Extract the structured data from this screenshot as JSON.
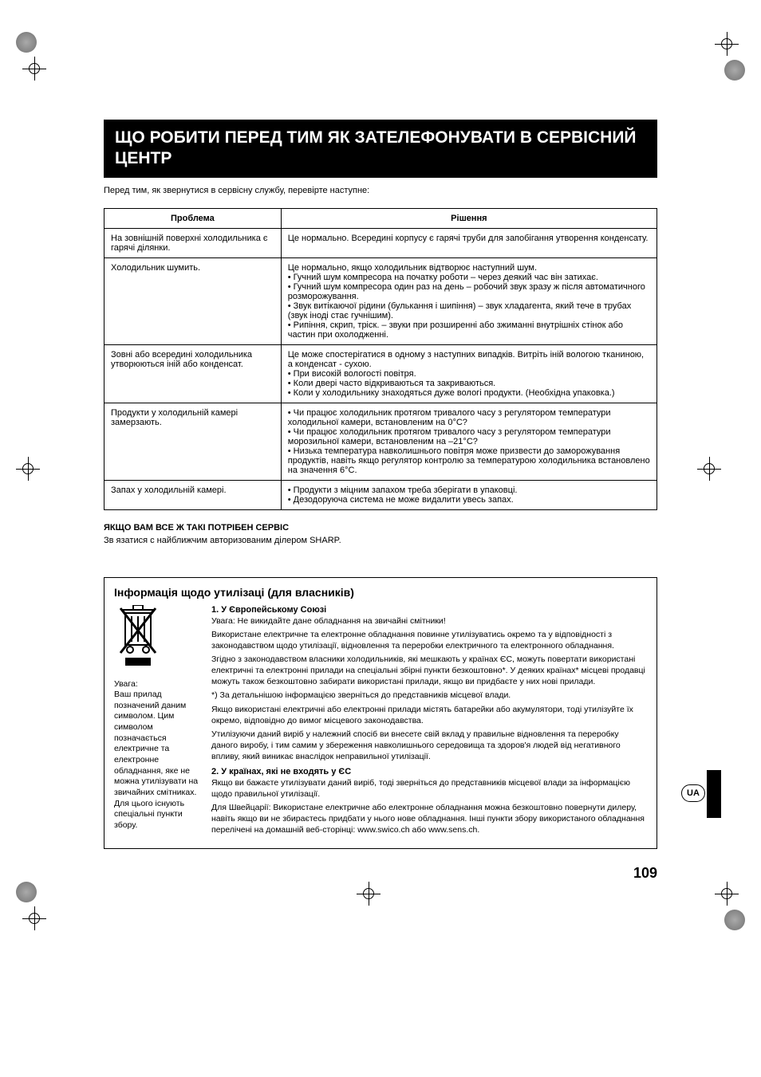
{
  "heading": "ЩО РОБИТИ ПЕРЕД ТИМ ЯК ЗАТЕЛЕФОНУВАТИ В СЕРВІСНИЙ ЦЕНТР",
  "intro": "Перед тим, як звернутися в сервісну службу, перевірте наступне:",
  "table": {
    "col1": "Проблема",
    "col2": "Рішення",
    "rows": [
      {
        "problem": "На зовнішній поверхні холодильника є гарячі ділянки.",
        "solution": "Це нормально. Всередині корпусу є гарячі труби для запобігання утворення конденсату."
      },
      {
        "problem": "Холодильник шумить.",
        "solution": "Це нормально, якщо холодильник відтворює наступний шум.\n• Гучний шум компресора на початку роботи – через деякий час він затихає.\n• Гучний шум компресора один раз на день – робочий звук зразу ж після автоматичного розморожування.\n• Звук витікаючої рідини (булькання і шипіння) – звук хладагента, який тече в трубах (звук іноді стає гучнішим).\n• Рипіння, скрип, тріск. – звуки при розширенні або зжиманні внутрішніх стінок або частин при охолодженні."
      },
      {
        "problem": "Зовні або всередині холодильника утворюються іній або конденсат.",
        "solution": "Це може спостерігатися в одному з наступних випадків. Витріть іній вологою тканиною, а конденсат - сухою.\n• При високій вологості повітря.\n• Коли двері часто відкриваються та закриваються.\n• Коли у холодильнику знаходяться дуже вологі продукти. (Необхідна упаковка.)"
      },
      {
        "problem": "Продукти у холодильній камері замерзають.",
        "solution": "• Чи працює холодильник протягом тривалого часу з регулятором температури холодильної камери, встановленим на 0°C?\n• Чи працює холодильник протягом тривалого часу з регулятором температури морозильної камери, встановленим на –21°C?\n• Низька температура навколишнього повітря може призвести до заморожування продуктів, навіть якщо регулятор контролю за температурою холодильника встановлено на значення 6°C."
      },
      {
        "problem": "Запах у холодильній камері.",
        "solution": "• Продукти з міцним запахом треба зберігати в упаковці.\n• Дезодоруюча система не може видалити увесь запах."
      }
    ]
  },
  "service": {
    "head": "ЯКЩО ВАМ ВСЕ Ж ТАКІ ПОТРІБЕН СЕРВІС",
    "text": "Зв язатися с найближчим авторизованим ділером SHARP."
  },
  "disposal": {
    "title": "Інформація щодо утилізаці (для власників)",
    "caption": "Увага:\nВаш прилад позначений даним символом. Цим символом позначається електричне та електронне обладнання, яке не можна утилізувати на звичайних смітниках. Для цього існують спеціальні пункти збору.",
    "h1": "1. У Європейському Союзі",
    "p1": "Увага: Не викидайте дане обладнання на звичайні смітники!",
    "p2": "Використане електричне та електронне обладнання повинне утилізуватись окремо та у відповідності з законодавством щодо утилізації, відновлення та переробки електричного та електронного обладнання.",
    "p3": "Згідно з законодавством власники холодильників, які мешкають у країнах ЄC, можуть повертати використані електричні та електронні прилади на спеціальні збірні пункти безкоштовно*. У деяких країнах* місцеві продавці можуть також безкоштовно забирати використані прилади, якщо ви придбаєте у них нові прилади.",
    "p4": "*) За детальнішою інформацією зверніться до представників місцевої влади.",
    "p5": "Якщо використані електричні або електронні прилади містять батарейки або акумулятори, тоді утилізуйте їх окремо, відповідно до вимог місцевого законодавства.",
    "p6": "Утилізуючи даний виріб у належний спосіб ви внесете свій вклад у правильне відновлення та переробку даного виробу, і тим самим у збереження навколишнього середовища та здоров'я людей від негативного впливу, який виникає внаслідок неправильної утилізації.",
    "h2": "2. У країнах, які не входять у ЄC",
    "p7": "Якщо ви бажаєте утилізувати даний виріб, тоді зверніться до представників місцевої влади за інформацією щодо правильної утилізації.",
    "p8": "Для Швейцарії: Використане електричне або електронне обладнання можна безкоштовно повернути дилеру, навіть якщо ви не збираєтесь придбати у нього нове обладнання. Інші пункти збору використаного обладнання перелічені на домашній веб-сторінці: www.swico.ch або www.sens.ch."
  },
  "ua_label": "UA",
  "page_number": "109",
  "colors": {
    "heading_bg": "#000000",
    "heading_fg": "#ffffff",
    "border": "#000000",
    "text": "#000000"
  }
}
